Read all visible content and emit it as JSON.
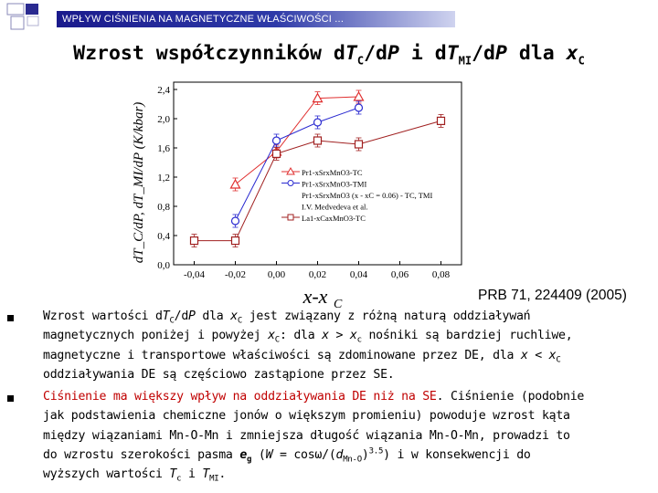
{
  "header": {
    "text": "WPŁYW CIŚNIENIA NA MAGNETYCZNE WŁAŚCIWOŚCI ..."
  },
  "title": {
    "t1": "Wzrost współczynników ",
    "t2": "d",
    "t3": "T",
    "t4": "C",
    "t5": "/d",
    "t6": "P",
    "t7": " i d",
    "t8": "T",
    "t9": "MI",
    "t10": "/d",
    "t11": "P",
    "t12": " dla ",
    "t13": "x",
    "t14": "C"
  },
  "chart_data": {
    "type": "line",
    "x": [
      -0.04,
      -0.02,
      0.0,
      0.02,
      0.04,
      0.06,
      0.08
    ],
    "xlabel": "x-x",
    "xlabel_sub": "C",
    "ylabel": "dT_C/dP, dT_MI/dP (K/kbar)",
    "xlim": [
      -0.05,
      0.09
    ],
    "ylim": [
      0.0,
      2.5
    ],
    "x_ticks": [
      "-0,04",
      "-0,02",
      "0,00",
      "0,02",
      "0,04",
      "0,06",
      "0,08"
    ],
    "y_ticks": [
      "0,0",
      "0,4",
      "0,8",
      "1,2",
      "1,6",
      "2,0",
      "2,4"
    ],
    "series": [
      {
        "name": "Pr1-xSrxMnO3-TC",
        "color": "#e03030",
        "marker": "triangle",
        "points": [
          [
            -0.02,
            1.1
          ],
          [
            0.0,
            1.55
          ],
          [
            0.02,
            2.28
          ],
          [
            0.04,
            2.3
          ]
        ]
      },
      {
        "name": "Pr1-xSrxMnO3-TMI",
        "color": "#2a2ad0",
        "marker": "circle",
        "points": [
          [
            -0.02,
            0.6
          ],
          [
            0.0,
            1.7
          ],
          [
            0.02,
            1.95
          ],
          [
            0.04,
            2.15
          ]
        ]
      },
      {
        "name": "Pr1-xSrxMnO3 (x - xC = 0.06) - TC, TMI",
        "color": "#000000",
        "marker": "none",
        "points": []
      },
      {
        "name": "I.V. Medvedeva et al.",
        "color": "#000000",
        "marker": "none",
        "points": []
      },
      {
        "name": "La1-xCaxMnO3-TC",
        "color": "#a02020",
        "marker": "square",
        "points": [
          [
            -0.04,
            0.33
          ],
          [
            -0.02,
            0.33
          ],
          [
            0.0,
            1.52
          ],
          [
            0.02,
            1.7
          ],
          [
            0.04,
            1.65
          ],
          [
            0.08,
            1.97
          ]
        ]
      }
    ],
    "legend_lines": [
      "Pr1-xSrxMnO3-TC",
      "Pr1-xSrxMnO3-TMI",
      "Pr1-xSrxMnO3 (x - xC = 0.06) - TC, TMI",
      "I.V. Medvedeva et al.",
      "La1-xCaxMnO3-TC"
    ],
    "legend_position": "right-center"
  },
  "reference": "PRB 71, 224409 (2005)",
  "bullet1": {
    "a": "Wzrost wartości ",
    "b": "d",
    "c": "T",
    "d": "C",
    "e": "/d",
    "f": "P",
    "g": " dla ",
    "h": "x",
    "i": "C",
    "j": " jest związany z różną naturą oddziaływań",
    "k": "magnetycznych  poniżej i powyżej ",
    "l": "x",
    "m": "C",
    "n": ":  dla ",
    "o": "x",
    "p": " > ",
    "q": "x",
    "r": "c",
    "s": " nośniki są bardziej ruchliwe,",
    "t": "magnetyczne i transportowe właściwości są zdominowane przez DE, dla ",
    "u": "x",
    "v": " < ",
    "w": "x",
    "x": "C",
    "y": "oddziaływania DE są częściowo zastąpione przez  SE."
  },
  "bullet2": {
    "a": "Ciśnienie ma większy wpływ na oddziaływania DE niż na SE",
    "b": ". Ciśnienie (podobnie",
    "c": "jak podstawienia chemiczne jonów o większym promieniu) powoduje wzrost kąta",
    "d": "między wiązaniami Mn-O-Mn i zmniejsza długość wiązania Mn-O-Mn, prowadzi to",
    "e": "do wzrostu szerokości pasma ",
    "f": "e",
    "g": "g",
    "h": " (",
    "i": "W",
    "j": " = cos",
    "k": "ω",
    "l": "/(",
    "m": "d",
    "n": "Mn-O",
    "o": ")",
    "p": "3.5",
    "q": ") i w konsekwencji do",
    "r": "wyższych wartości ",
    "s": "T",
    "t": "c",
    "u": " i ",
    "v": "T",
    "w": "MI",
    "x": "."
  }
}
